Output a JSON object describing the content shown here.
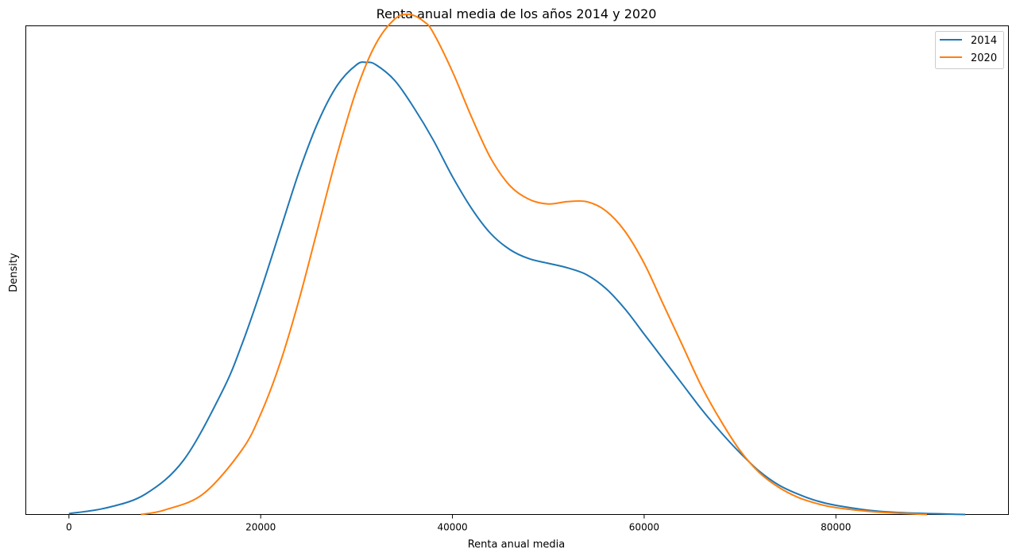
{
  "chart_data": {
    "type": "line",
    "title": "Renta anual media de los años 2014 y 2020",
    "xlabel": "Renta anual media",
    "ylabel": "Density",
    "xlim": [
      -4500,
      98000
    ],
    "ylim": [
      0,
      1.07
    ],
    "x_ticks": [
      0,
      20000,
      40000,
      60000,
      80000
    ],
    "x_tick_labels": [
      "0",
      "20000",
      "40000",
      "60000",
      "80000"
    ],
    "y_ticks_shown": false,
    "grid": false,
    "legend": {
      "position": "top-right"
    },
    "series": [
      {
        "name": "2014",
        "color": "#1f77b4",
        "x": [
          0,
          4000,
          8000,
          12000,
          16000,
          18000,
          20000,
          22000,
          24000,
          26000,
          28000,
          30000,
          31000,
          32000,
          34000,
          36000,
          38000,
          40000,
          42000,
          44000,
          46000,
          48000,
          50000,
          52000,
          54000,
          56000,
          58000,
          60000,
          62000,
          64000,
          66000,
          68000,
          70000,
          72000,
          74000,
          76000,
          78000,
          80000,
          84000,
          88000,
          93500
        ],
        "y": [
          0.002,
          0.015,
          0.045,
          0.12,
          0.27,
          0.37,
          0.49,
          0.62,
          0.75,
          0.86,
          0.94,
          0.985,
          0.99,
          0.985,
          0.95,
          0.89,
          0.82,
          0.74,
          0.67,
          0.615,
          0.58,
          0.56,
          0.55,
          0.54,
          0.525,
          0.495,
          0.45,
          0.395,
          0.34,
          0.285,
          0.23,
          0.18,
          0.135,
          0.095,
          0.065,
          0.045,
          0.03,
          0.02,
          0.008,
          0.003,
          0.0
        ]
      },
      {
        "name": "2020",
        "color": "#ff7f0e",
        "x": [
          7500,
          10000,
          14000,
          18000,
          20000,
          22000,
          24000,
          26000,
          28000,
          30000,
          32000,
          34000,
          35500,
          37000,
          38000,
          40000,
          42000,
          44000,
          46000,
          48000,
          50000,
          52000,
          54000,
          56000,
          58000,
          60000,
          62000,
          64000,
          66000,
          68000,
          70000,
          72000,
          74000,
          76000,
          78000,
          80000,
          84000,
          89500
        ],
        "y": [
          0.0,
          0.01,
          0.045,
          0.14,
          0.22,
          0.33,
          0.47,
          0.63,
          0.79,
          0.93,
          1.03,
          1.085,
          1.095,
          1.08,
          1.055,
          0.97,
          0.87,
          0.78,
          0.72,
          0.69,
          0.68,
          0.685,
          0.685,
          0.665,
          0.62,
          0.55,
          0.46,
          0.37,
          0.28,
          0.205,
          0.14,
          0.092,
          0.06,
          0.038,
          0.024,
          0.015,
          0.006,
          0.0
        ]
      }
    ]
  }
}
